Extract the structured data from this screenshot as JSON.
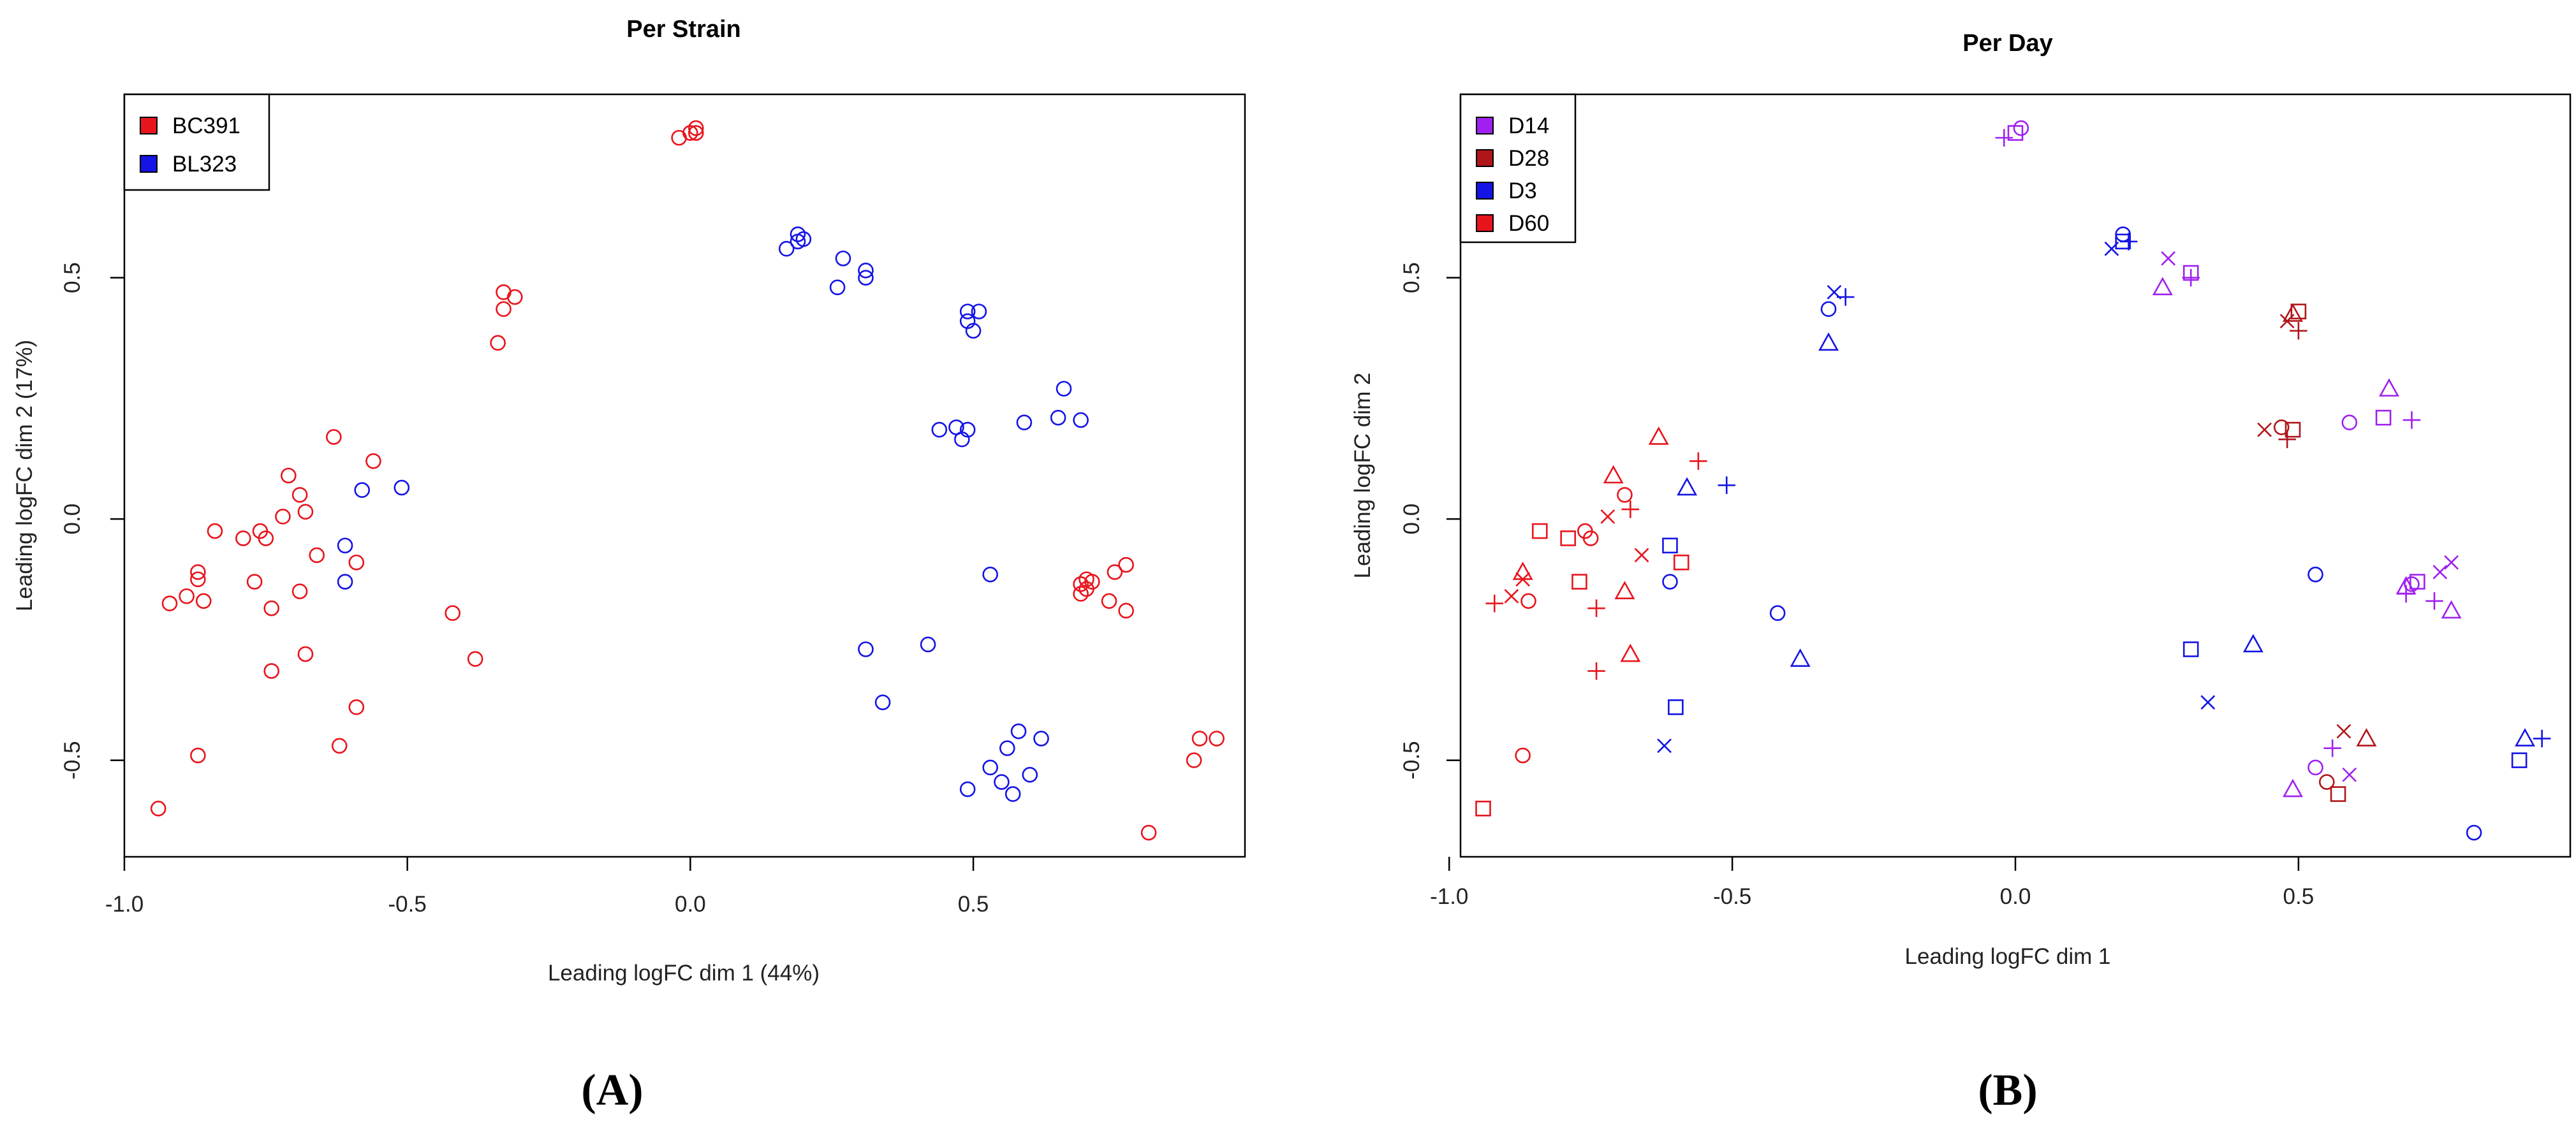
{
  "chart_data": [
    {
      "type": "scatter",
      "title": "Per Strain",
      "xlabel": "Leading logFC dim 1 (44%)",
      "ylabel": "Leading logFC dim 2 (17%)",
      "xlim": [
        -1.0,
        0.98
      ],
      "ylim": [
        -0.7,
        0.88
      ],
      "xticks": [
        -1.0,
        -0.5,
        0.0,
        0.5
      ],
      "xtick_labels": [
        "-1.0",
        "-0.5",
        "0.0",
        "0.5"
      ],
      "yticks": [
        -0.5,
        0.0,
        0.5
      ],
      "ytick_labels": [
        "-0.5",
        "0.0",
        "0.5"
      ],
      "legend": {
        "position": "top-left",
        "entries": [
          {
            "label": "BC391",
            "color": "#e8141c"
          },
          {
            "label": "BL323",
            "color": "#1414e6"
          }
        ]
      },
      "caption": "(A)",
      "series": [
        {
          "name": "BC391",
          "color": "#e8141c",
          "marker": "circle",
          "points": [
            [
              -0.02,
              0.79
            ],
            [
              0.0,
              0.8
            ],
            [
              0.01,
              0.81
            ],
            [
              0.01,
              0.8
            ],
            [
              -0.33,
              0.47
            ],
            [
              -0.33,
              0.435
            ],
            [
              -0.34,
              0.365
            ],
            [
              -0.31,
              0.46
            ],
            [
              -0.63,
              0.17
            ],
            [
              -0.56,
              0.12
            ],
            [
              -0.71,
              0.09
            ],
            [
              -0.69,
              0.05
            ],
            [
              -0.68,
              0.015
            ],
            [
              -0.72,
              0.005
            ],
            [
              -0.84,
              -0.025
            ],
            [
              -0.76,
              -0.025
            ],
            [
              -0.79,
              -0.04
            ],
            [
              -0.75,
              -0.04
            ],
            [
              -0.66,
              -0.075
            ],
            [
              -0.59,
              -0.09
            ],
            [
              -0.87,
              -0.11
            ],
            [
              -0.87,
              -0.125
            ],
            [
              -0.77,
              -0.13
            ],
            [
              -0.69,
              -0.15
            ],
            [
              -0.89,
              -0.16
            ],
            [
              -0.86,
              -0.17
            ],
            [
              -0.92,
              -0.175
            ],
            [
              -0.74,
              -0.185
            ],
            [
              -0.42,
              -0.195
            ],
            [
              -0.68,
              -0.28
            ],
            [
              -0.38,
              -0.29
            ],
            [
              -0.74,
              -0.315
            ],
            [
              -0.59,
              -0.39
            ],
            [
              -0.62,
              -0.47
            ],
            [
              -0.87,
              -0.49
            ],
            [
              -0.94,
              -0.6
            ],
            [
              0.77,
              -0.095
            ],
            [
              0.75,
              -0.11
            ],
            [
              0.7,
              -0.125
            ],
            [
              0.71,
              -0.13
            ],
            [
              0.69,
              -0.135
            ],
            [
              0.7,
              -0.145
            ],
            [
              0.69,
              -0.155
            ],
            [
              0.74,
              -0.17
            ],
            [
              0.77,
              -0.19
            ],
            [
              0.9,
              -0.455
            ],
            [
              0.93,
              -0.455
            ],
            [
              0.89,
              -0.5
            ],
            [
              0.81,
              -0.65
            ]
          ]
        },
        {
          "name": "BL323",
          "color": "#1414e6",
          "marker": "circle",
          "points": [
            [
              0.19,
              0.59
            ],
            [
              0.19,
              0.575
            ],
            [
              0.2,
              0.58
            ],
            [
              0.17,
              0.56
            ],
            [
              0.27,
              0.54
            ],
            [
              0.31,
              0.515
            ],
            [
              0.31,
              0.5
            ],
            [
              0.26,
              0.48
            ],
            [
              0.49,
              0.43
            ],
            [
              0.51,
              0.43
            ],
            [
              0.49,
              0.41
            ],
            [
              0.5,
              0.39
            ],
            [
              0.66,
              0.27
            ],
            [
              0.65,
              0.21
            ],
            [
              0.69,
              0.205
            ],
            [
              0.59,
              0.2
            ],
            [
              0.47,
              0.19
            ],
            [
              0.44,
              0.185
            ],
            [
              0.49,
              0.185
            ],
            [
              0.48,
              0.165
            ],
            [
              -0.51,
              0.065
            ],
            [
              -0.58,
              0.06
            ],
            [
              -0.61,
              -0.055
            ],
            [
              -0.61,
              -0.13
            ],
            [
              0.53,
              -0.115
            ],
            [
              0.42,
              -0.26
            ],
            [
              0.31,
              -0.27
            ],
            [
              0.34,
              -0.38
            ],
            [
              0.58,
              -0.44
            ],
            [
              0.62,
              -0.455
            ],
            [
              0.56,
              -0.475
            ],
            [
              0.53,
              -0.515
            ],
            [
              0.6,
              -0.53
            ],
            [
              0.55,
              -0.545
            ],
            [
              0.49,
              -0.56
            ],
            [
              0.57,
              -0.57
            ]
          ]
        }
      ]
    },
    {
      "type": "scatter",
      "title": "Per Day",
      "xlabel": "Leading logFC dim 1",
      "ylabel": "Leading logFC dim 2",
      "xlim": [
        -0.98,
        0.98
      ],
      "ylim": [
        -0.7,
        0.88
      ],
      "xticks": [
        -1.0,
        -0.5,
        0.0,
        0.5
      ],
      "xtick_labels": [
        "-1.0",
        "-0.5",
        "0.0",
        "0.5"
      ],
      "yticks": [
        -0.5,
        0.0,
        0.5
      ],
      "ytick_labels": [
        "-0.5",
        "0.0",
        "0.5"
      ],
      "legend": {
        "position": "top-left",
        "entries": [
          {
            "label": "D14",
            "color": "#a020f0"
          },
          {
            "label": "D28",
            "color": "#b0151a"
          },
          {
            "label": "D3",
            "color": "#1414e6"
          },
          {
            "label": "D60",
            "color": "#e8141c"
          }
        ]
      },
      "caption": "(B)",
      "series": [
        {
          "name": "D14",
          "color": "#a020f0",
          "points": [
            [
              -0.02,
              0.79,
              "plus"
            ],
            [
              0.0,
              0.8,
              "square"
            ],
            [
              0.01,
              0.81,
              "circle"
            ],
            [
              0.27,
              0.54,
              "x"
            ],
            [
              0.31,
              0.51,
              "square"
            ],
            [
              0.31,
              0.5,
              "plus"
            ],
            [
              0.26,
              0.48,
              "triangle"
            ],
            [
              0.66,
              0.27,
              "triangle"
            ],
            [
              0.65,
              0.21,
              "square"
            ],
            [
              0.7,
              0.205,
              "plus"
            ],
            [
              0.59,
              0.2,
              "circle"
            ],
            [
              0.77,
              -0.09,
              "x"
            ],
            [
              0.71,
              -0.13,
              "square"
            ],
            [
              0.7,
              -0.135,
              "circle"
            ],
            [
              0.69,
              -0.14,
              "triangle"
            ],
            [
              0.75,
              -0.11,
              "x"
            ],
            [
              0.69,
              -0.155,
              "plus"
            ],
            [
              0.74,
              -0.17,
              "plus"
            ],
            [
              0.77,
              -0.19,
              "triangle"
            ],
            [
              0.56,
              -0.475,
              "plus"
            ],
            [
              0.53,
              -0.515,
              "circle"
            ],
            [
              0.59,
              -0.53,
              "x"
            ],
            [
              0.49,
              -0.56,
              "triangle"
            ]
          ]
        },
        {
          "name": "D28",
          "color": "#b0151a",
          "points": [
            [
              0.5,
              0.43,
              "square"
            ],
            [
              0.49,
              0.425,
              "triangle"
            ],
            [
              0.48,
              0.41,
              "x"
            ],
            [
              0.5,
              0.39,
              "plus"
            ],
            [
              0.44,
              0.185,
              "x"
            ],
            [
              0.47,
              0.19,
              "circle"
            ],
            [
              0.49,
              0.185,
              "square"
            ],
            [
              0.48,
              0.165,
              "plus"
            ],
            [
              0.58,
              -0.44,
              "x"
            ],
            [
              0.62,
              -0.455,
              "triangle"
            ],
            [
              0.55,
              -0.545,
              "circle"
            ],
            [
              0.57,
              -0.57,
              "square"
            ]
          ]
        },
        {
          "name": "D3",
          "color": "#1414e6",
          "points": [
            [
              0.19,
              0.59,
              "circle"
            ],
            [
              0.19,
              0.575,
              "square"
            ],
            [
              0.2,
              0.575,
              "plus"
            ],
            [
              0.17,
              0.56,
              "x"
            ],
            [
              -0.32,
              0.47,
              "x"
            ],
            [
              -0.33,
              0.435,
              "circle"
            ],
            [
              -0.3,
              0.46,
              "plus"
            ],
            [
              -0.33,
              0.365,
              "triangle"
            ],
            [
              -0.58,
              0.065,
              "triangle"
            ],
            [
              -0.51,
              0.07,
              "plus"
            ],
            [
              -0.61,
              -0.055,
              "square"
            ],
            [
              -0.61,
              -0.13,
              "circle"
            ],
            [
              0.53,
              -0.115,
              "circle"
            ],
            [
              -0.42,
              -0.195,
              "circle"
            ],
            [
              -0.38,
              -0.29,
              "triangle"
            ],
            [
              0.42,
              -0.26,
              "triangle"
            ],
            [
              0.31,
              -0.27,
              "square"
            ],
            [
              0.34,
              -0.38,
              "x"
            ],
            [
              -0.6,
              -0.39,
              "square"
            ],
            [
              -0.62,
              -0.47,
              "x"
            ],
            [
              0.9,
              -0.455,
              "triangle"
            ],
            [
              0.93,
              -0.455,
              "plus"
            ],
            [
              0.89,
              -0.5,
              "square"
            ],
            [
              0.81,
              -0.65,
              "circle"
            ]
          ]
        },
        {
          "name": "D60",
          "color": "#e8141c",
          "points": [
            [
              -0.63,
              0.17,
              "triangle"
            ],
            [
              -0.56,
              0.12,
              "plus"
            ],
            [
              -0.71,
              0.09,
              "triangle"
            ],
            [
              -0.69,
              0.05,
              "circle"
            ],
            [
              -0.68,
              0.02,
              "plus"
            ],
            [
              -0.72,
              0.005,
              "x"
            ],
            [
              -0.84,
              -0.025,
              "square"
            ],
            [
              -0.76,
              -0.025,
              "circle"
            ],
            [
              -0.79,
              -0.04,
              "square"
            ],
            [
              -0.75,
              -0.04,
              "circle"
            ],
            [
              -0.66,
              -0.075,
              "x"
            ],
            [
              -0.59,
              -0.09,
              "square"
            ],
            [
              -0.87,
              -0.11,
              "triangle"
            ],
            [
              -0.87,
              -0.125,
              "x"
            ],
            [
              -0.77,
              -0.13,
              "square"
            ],
            [
              -0.69,
              -0.15,
              "triangle"
            ],
            [
              -0.89,
              -0.16,
              "x"
            ],
            [
              -0.86,
              -0.17,
              "circle"
            ],
            [
              -0.92,
              -0.175,
              "plus"
            ],
            [
              -0.74,
              -0.185,
              "plus"
            ],
            [
              -0.68,
              -0.28,
              "triangle"
            ],
            [
              -0.74,
              -0.315,
              "plus"
            ],
            [
              -0.87,
              -0.49,
              "circle"
            ],
            [
              -0.94,
              -0.6,
              "square"
            ]
          ]
        }
      ]
    }
  ]
}
